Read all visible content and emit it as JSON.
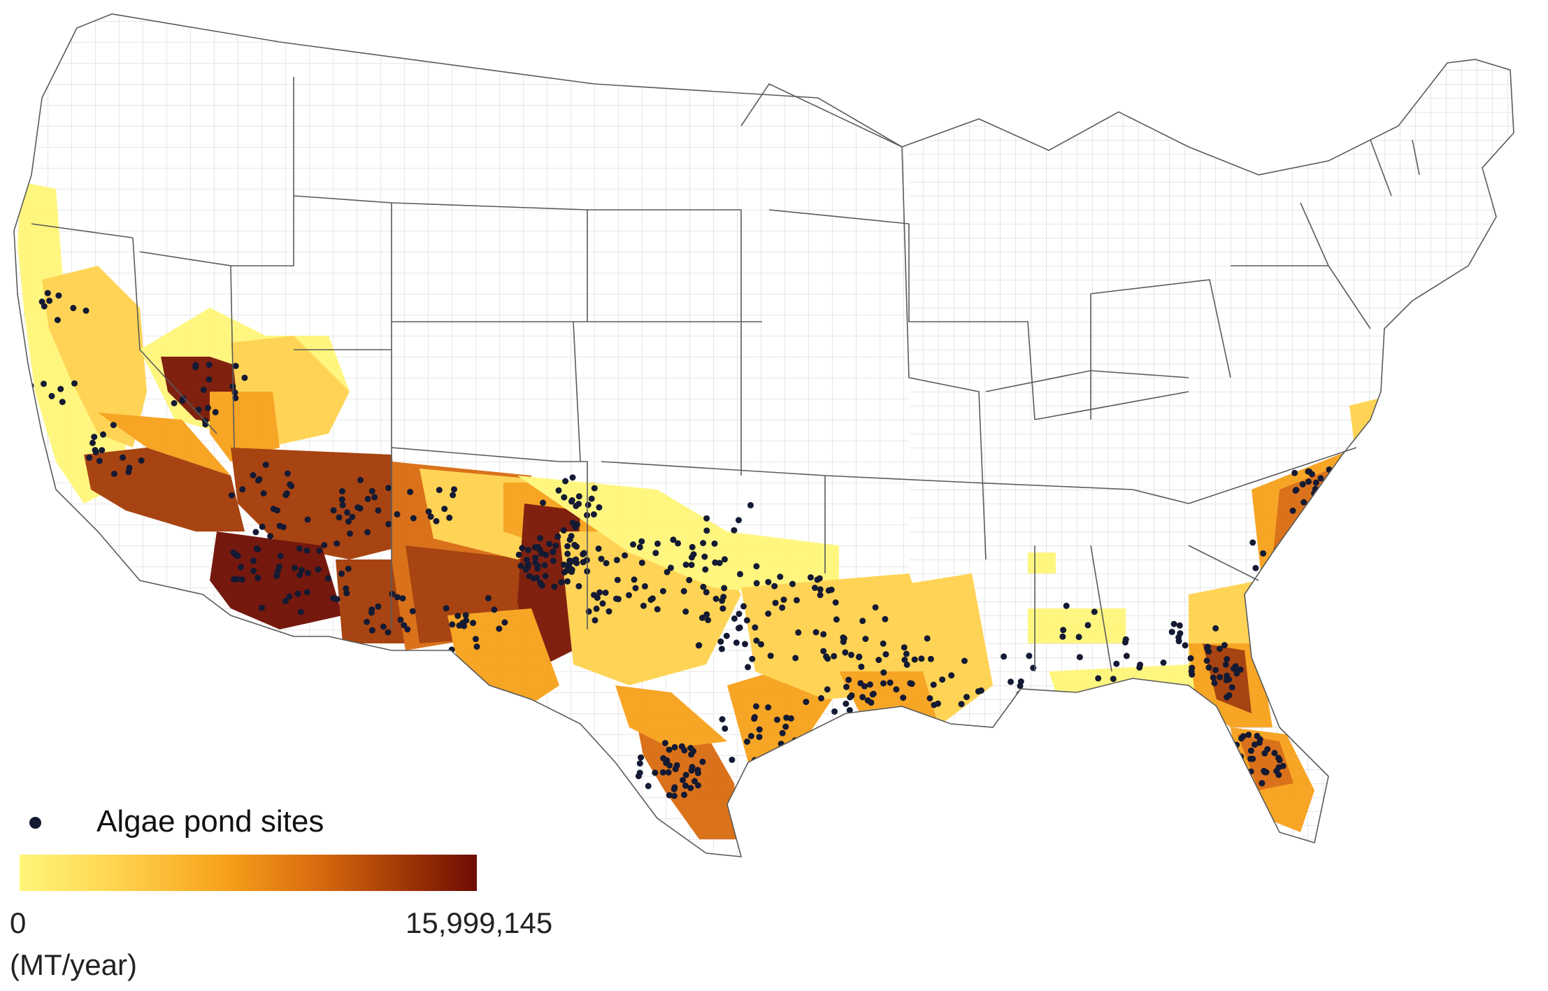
{
  "legend": {
    "sites_label": "Algae pond sites",
    "min_label": "0",
    "max_label": "15,999,145",
    "unit_label": "(MT/year)"
  },
  "colors": {
    "scale": [
      "#fff67a",
      "#ffd24d",
      "#f7a11a",
      "#d96b0f",
      "#a33a06",
      "#6e0c02"
    ],
    "site_dot": "#141a33",
    "county_border": "#c8c8c8",
    "state_border": "#5a5a5a",
    "land": "#ffffff"
  }
}
